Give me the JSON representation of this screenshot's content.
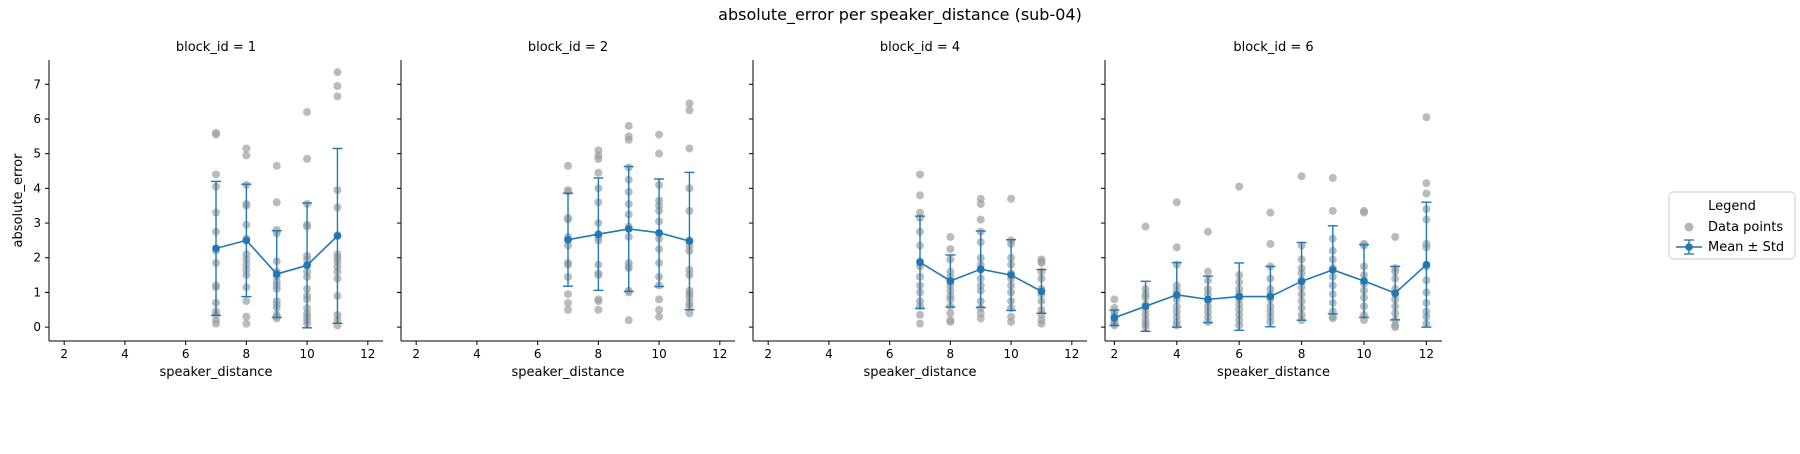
{
  "figure": {
    "title": "absolute_error per speaker_distance (sub-04)"
  },
  "legend": {
    "title": "Legend",
    "items": [
      {
        "label": "Data points",
        "kind": "scatter"
      },
      {
        "label": "Mean ± Std",
        "kind": "errorline"
      }
    ]
  },
  "colors": {
    "points": "#9e9e9e",
    "mean": "#1f77b4",
    "axis": "#000000"
  },
  "chart_data": [
    {
      "type": "scatter",
      "title": "block_id = 1",
      "xlabel": "speaker_distance",
      "ylabel": "absolute_error",
      "xlim": [
        1.5,
        12.5
      ],
      "ylim": [
        -0.4,
        7.7
      ],
      "xticks": [
        2,
        4,
        6,
        8,
        10,
        12
      ],
      "yticks": [
        0,
        1,
        2,
        3,
        4,
        5,
        6,
        7
      ],
      "points": [
        {
          "x": 7,
          "y": [
            5.6,
            5.55,
            4.4,
            4.05,
            3.3,
            2.75,
            2.2,
            1.85,
            1.2,
            1.15,
            0.7,
            0.45,
            0.35,
            0.2,
            0.1
          ]
        },
        {
          "x": 8,
          "y": [
            5.15,
            4.95,
            4.1,
            3.55,
            3.5,
            2.95,
            2.55,
            2.1,
            1.95,
            1.8,
            1.65,
            1.5,
            1.15,
            0.75,
            0.3,
            0.1
          ]
        },
        {
          "x": 9,
          "y": [
            4.65,
            3.6,
            2.8,
            2.7,
            1.9,
            1.6,
            1.45,
            1.3,
            1.2,
            1.1,
            0.75,
            0.65,
            0.55,
            0.35,
            0.3,
            0.25
          ]
        },
        {
          "x": 10,
          "y": [
            6.2,
            4.85,
            3.55,
            2.95,
            2.9,
            2.05,
            1.95,
            1.8,
            1.6,
            1.45,
            1.1,
            0.9,
            0.8,
            0.55,
            0.4,
            0.3,
            0.2,
            0.1
          ]
        },
        {
          "x": 11,
          "y": [
            7.35,
            6.95,
            6.65,
            3.95,
            3.45,
            2.65,
            2.1,
            2.0,
            1.9,
            1.75,
            1.6,
            1.4,
            0.9,
            0.35,
            0.2,
            0.05
          ]
        }
      ],
      "mean": [
        {
          "x": 7,
          "y": 2.27,
          "std": 1.93
        },
        {
          "x": 8,
          "y": 2.5,
          "std": 1.62
        },
        {
          "x": 9,
          "y": 1.53,
          "std": 1.25
        },
        {
          "x": 10,
          "y": 1.78,
          "std": 1.8
        },
        {
          "x": 11,
          "y": 2.63,
          "std": 2.52
        }
      ]
    },
    {
      "type": "scatter",
      "title": "block_id = 2",
      "xlabel": "speaker_distance",
      "ylabel": "",
      "xlim": [
        1.5,
        12.5
      ],
      "ylim": [
        -0.4,
        7.7
      ],
      "xticks": [
        2,
        4,
        6,
        8,
        10,
        12
      ],
      "yticks": [
        0,
        1,
        2,
        3,
        4,
        5,
        6,
        7
      ],
      "points": [
        {
          "x": 7,
          "y": [
            4.65,
            3.95,
            3.9,
            3.15,
            3.1,
            2.6,
            2.5,
            2.35,
            1.85,
            1.8,
            1.45,
            0.95,
            0.7,
            0.5
          ]
        },
        {
          "x": 8,
          "y": [
            5.1,
            4.95,
            4.85,
            4.45,
            4.0,
            3.6,
            3.0,
            2.65,
            2.6,
            2.5,
            1.8,
            1.55,
            1.5,
            0.8,
            0.75,
            0.5
          ]
        },
        {
          "x": 9,
          "y": [
            5.8,
            5.5,
            5.4,
            4.6,
            4.25,
            3.9,
            3.55,
            3.25,
            2.9,
            2.6,
            1.85,
            1.75,
            1.7,
            1.05,
            1.0,
            0.2
          ]
        },
        {
          "x": 10,
          "y": [
            5.55,
            5.0,
            4.1,
            3.65,
            3.5,
            3.35,
            3.05,
            2.7,
            2.55,
            2.25,
            1.85,
            1.45,
            1.2,
            0.8,
            0.5,
            0.3
          ]
        },
        {
          "x": 11,
          "y": [
            6.45,
            6.25,
            5.15,
            4.0,
            3.35,
            2.5,
            2.35,
            2.2,
            1.65,
            1.5,
            1.05,
            0.95,
            0.85,
            0.7,
            0.6,
            0.4
          ]
        }
      ],
      "mean": [
        {
          "x": 7,
          "y": 2.52,
          "std": 1.34
        },
        {
          "x": 8,
          "y": 2.68,
          "std": 1.62
        },
        {
          "x": 9,
          "y": 2.83,
          "std": 1.8
        },
        {
          "x": 10,
          "y": 2.72,
          "std": 1.55
        },
        {
          "x": 11,
          "y": 2.48,
          "std": 1.98
        }
      ]
    },
    {
      "type": "scatter",
      "title": "block_id = 4",
      "xlabel": "speaker_distance",
      "ylabel": "",
      "xlim": [
        1.5,
        12.5
      ],
      "ylim": [
        -0.4,
        7.7
      ],
      "xticks": [
        2,
        4,
        6,
        8,
        10,
        12
      ],
      "yticks": [
        0,
        1,
        2,
        3,
        4,
        5,
        6,
        7
      ],
      "points": [
        {
          "x": 7,
          "y": [
            4.4,
            3.8,
            3.3,
            3.15,
            2.75,
            2.35,
            1.9,
            1.75,
            1.45,
            1.2,
            1.0,
            0.75,
            0.6,
            0.35,
            0.1
          ]
        },
        {
          "x": 8,
          "y": [
            2.6,
            2.25,
            1.95,
            1.6,
            1.45,
            1.3,
            1.2,
            1.05,
            0.9,
            0.8,
            0.6,
            0.4,
            0.2,
            0.15
          ]
        },
        {
          "x": 9,
          "y": [
            3.7,
            3.55,
            3.1,
            2.75,
            2.45,
            2.0,
            1.8,
            1.65,
            1.4,
            1.2,
            1.05,
            0.75,
            0.55,
            0.4,
            0.25
          ]
        },
        {
          "x": 10,
          "y": [
            3.7,
            2.5,
            2.4,
            2.0,
            1.8,
            1.55,
            1.4,
            1.2,
            1.0,
            0.75,
            0.55,
            0.3,
            0.15
          ]
        },
        {
          "x": 11,
          "y": [
            1.95,
            1.9,
            1.85,
            1.6,
            1.4,
            1.1,
            0.95,
            0.75,
            0.5,
            0.35,
            0.2,
            0.1
          ]
        }
      ],
      "mean": [
        {
          "x": 7,
          "y": 1.87,
          "std": 1.33
        },
        {
          "x": 8,
          "y": 1.33,
          "std": 0.75
        },
        {
          "x": 9,
          "y": 1.67,
          "std": 1.1
        },
        {
          "x": 10,
          "y": 1.5,
          "std": 1.02
        },
        {
          "x": 11,
          "y": 1.03,
          "std": 0.63
        }
      ]
    },
    {
      "type": "scatter",
      "title": "block_id = 6",
      "xlabel": "speaker_distance",
      "ylabel": "",
      "xlim": [
        1.7,
        12.5
      ],
      "ylim": [
        -0.4,
        7.7
      ],
      "xticks": [
        2,
        4,
        6,
        8,
        10,
        12
      ],
      "yticks": [
        0,
        1,
        2,
        3,
        4,
        5,
        6,
        7
      ],
      "points": [
        {
          "x": 2,
          "y": [
            0.8,
            0.55,
            0.45,
            0.35,
            0.25,
            0.15,
            0.1,
            0.05
          ]
        },
        {
          "x": 3,
          "y": [
            2.9,
            1.1,
            0.95,
            0.85,
            0.65,
            0.5,
            0.35,
            0.2,
            0.1,
            0.0
          ]
        },
        {
          "x": 4,
          "y": [
            3.6,
            2.3,
            1.8,
            1.2,
            1.05,
            0.9,
            0.8,
            0.6,
            0.45,
            0.3,
            0.15,
            0.05
          ]
        },
        {
          "x": 5,
          "y": [
            2.75,
            1.6,
            1.35,
            1.1,
            0.95,
            0.75,
            0.6,
            0.45,
            0.3,
            0.15
          ]
        },
        {
          "x": 6,
          "y": [
            4.05,
            1.5,
            1.3,
            1.1,
            0.95,
            0.8,
            0.65,
            0.5,
            0.35,
            0.2,
            0.05
          ]
        },
        {
          "x": 7,
          "y": [
            3.3,
            2.4,
            1.75,
            1.4,
            1.1,
            0.95,
            0.8,
            0.6,
            0.45,
            0.3,
            0.15
          ]
        },
        {
          "x": 8,
          "y": [
            4.35,
            2.35,
            1.95,
            1.7,
            1.55,
            1.35,
            1.15,
            0.95,
            0.75,
            0.55,
            0.35,
            0.2
          ]
        },
        {
          "x": 9,
          "y": [
            4.3,
            3.35,
            2.55,
            2.2,
            1.95,
            1.7,
            1.45,
            1.2,
            0.95,
            0.7,
            0.45,
            0.3,
            0.25
          ]
        },
        {
          "x": 10,
          "y": [
            3.35,
            3.3,
            2.4,
            2.35,
            1.75,
            1.5,
            1.25,
            1.05,
            0.85,
            0.6,
            0.35,
            0.2
          ]
        },
        {
          "x": 11,
          "y": [
            2.6,
            1.7,
            1.6,
            1.4,
            1.1,
            0.95,
            0.8,
            0.6,
            0.4,
            0.2,
            0.05,
            0.0
          ]
        },
        {
          "x": 12,
          "y": [
            6.05,
            4.15,
            3.85,
            3.4,
            3.1,
            2.4,
            2.3,
            1.75,
            1.35,
            1.0,
            0.7,
            0.45,
            0.3,
            0.1
          ]
        }
      ],
      "mean": [
        {
          "x": 2,
          "y": 0.27,
          "std": 0.22
        },
        {
          "x": 3,
          "y": 0.6,
          "std": 0.72
        },
        {
          "x": 4,
          "y": 0.93,
          "std": 0.93
        },
        {
          "x": 5,
          "y": 0.8,
          "std": 0.67
        },
        {
          "x": 6,
          "y": 0.88,
          "std": 0.97
        },
        {
          "x": 7,
          "y": 0.88,
          "std": 0.87
        },
        {
          "x": 8,
          "y": 1.32,
          "std": 1.12
        },
        {
          "x": 9,
          "y": 1.65,
          "std": 1.27
        },
        {
          "x": 10,
          "y": 1.33,
          "std": 1.05
        },
        {
          "x": 11,
          "y": 0.98,
          "std": 0.77
        },
        {
          "x": 12,
          "y": 1.8,
          "std": 1.8
        }
      ]
    }
  ]
}
